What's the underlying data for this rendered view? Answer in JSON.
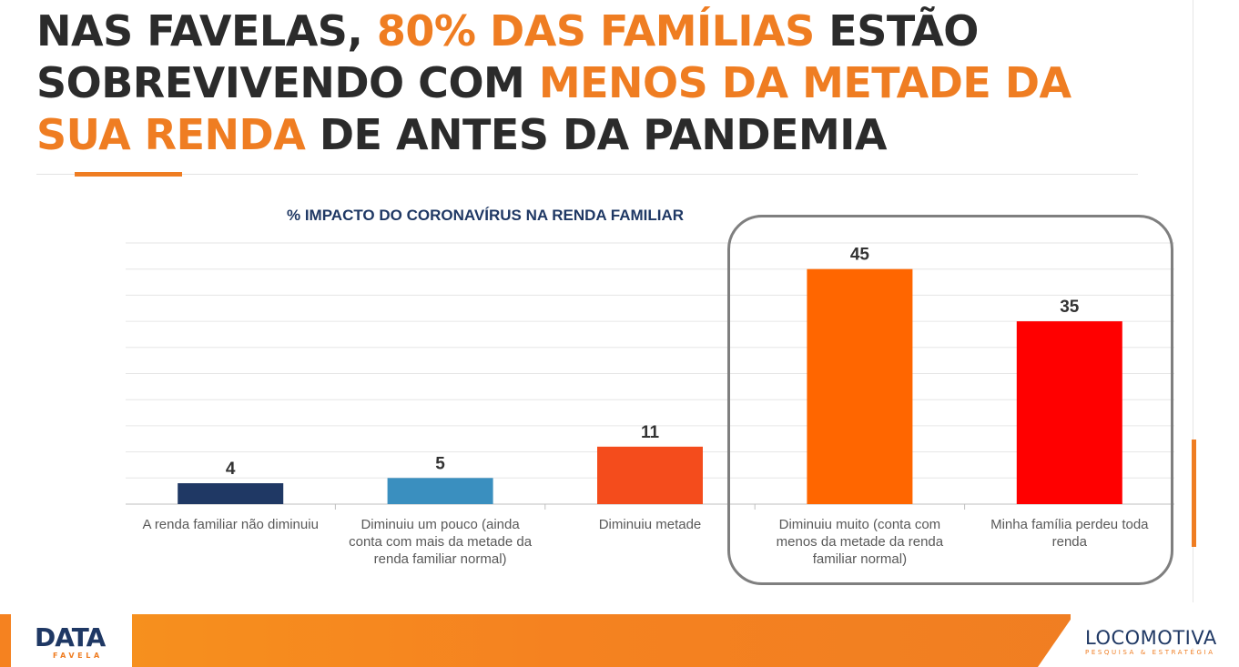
{
  "title": {
    "p1": "NAS FAVELAS, ",
    "h1": "80% DAS FAMÍLIAS",
    "p2": " ESTÃO SOBREVIVENDO COM ",
    "h2": "MENOS DA METADE DA SUA RENDA",
    "p3": " DE ANTES DA PANDEMIA"
  },
  "colors": {
    "accent": "#ef7d22",
    "title_text": "#2b2b2b",
    "chart_title": "#1f3864"
  },
  "chart_data": {
    "type": "bar",
    "title": "% IMPACTO DO CORONAVÍRUS NA RENDA FAMILIAR",
    "categories": [
      "A renda familiar não diminuiu",
      "Diminuiu um pouco (ainda conta com mais da metade da renda familiar normal)",
      "Diminuiu metade",
      "Diminuiu muito (conta com menos da metade da renda familiar normal)",
      "Minha família perdeu toda renda"
    ],
    "category_lines": [
      [
        "A renda familiar não diminuiu"
      ],
      [
        "Diminuiu um pouco (ainda",
        "conta com mais da metade da",
        "renda familiar normal)"
      ],
      [
        "Diminuiu metade"
      ],
      [
        "Diminuiu muito (conta com",
        "menos da metade da renda",
        "familiar normal)"
      ],
      [
        "Minha família perdeu toda",
        "renda"
      ]
    ],
    "values": [
      4,
      5,
      11,
      45,
      35
    ],
    "data_labels": [
      "4",
      "5",
      "11",
      "45",
      "35"
    ],
    "bar_colors": [
      "#1f3864",
      "#3a8fbf",
      "#f44c1c",
      "#ff6600",
      "#ff0000"
    ],
    "ylim": [
      0,
      50
    ],
    "grid": true,
    "legend": "none",
    "highlighted_categories": [
      3,
      4
    ]
  },
  "footer": {
    "left_logo_main": "DATA",
    "left_logo_sub": "FAVELA",
    "right_logo_main": "LOCOMOTIVA",
    "right_logo_sub": "PESQUISA & ESTRATÉGIA"
  }
}
